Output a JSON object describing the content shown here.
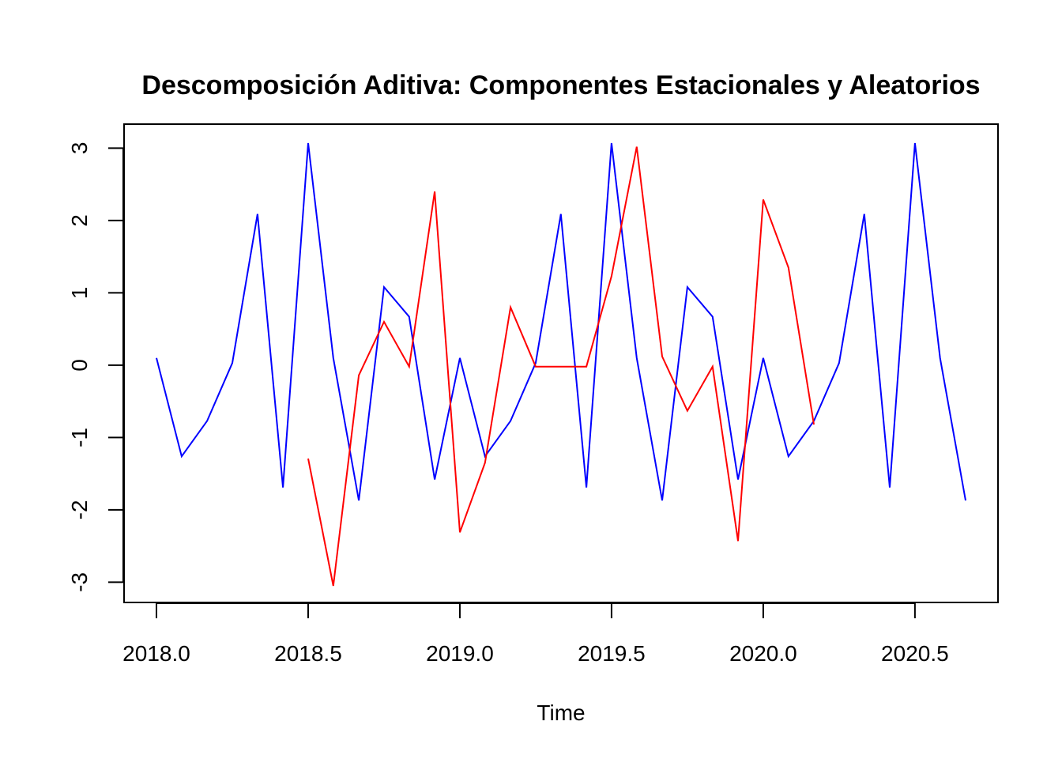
{
  "chart_data": {
    "type": "line",
    "title": "Descomposición Aditiva: Componentes Estacionales y Aleatorios",
    "xlabel": "Time",
    "ylabel": "",
    "xlim": [
      2018.0,
      2020.667
    ],
    "ylim": [
      -3.05,
      3.07
    ],
    "xticks": [
      2018.0,
      2018.5,
      2019.0,
      2019.5,
      2020.0,
      2020.5
    ],
    "xtick_labels": [
      "2018.0",
      "2018.5",
      "2019.0",
      "2019.5",
      "2020.0",
      "2020.5"
    ],
    "yticks": [
      -3,
      -2,
      -1,
      0,
      1,
      2,
      3
    ],
    "ytick_labels": [
      "-3",
      "-2",
      "-1",
      "0",
      "1",
      "2",
      "3"
    ],
    "grid": false,
    "legend": "none",
    "series": [
      {
        "color": "#0000ff",
        "x": [
          2018.0,
          2018.083,
          2018.167,
          2018.25,
          2018.333,
          2018.417,
          2018.5,
          2018.583,
          2018.667,
          2018.75,
          2018.833,
          2018.917,
          2019.0,
          2019.083,
          2019.167,
          2019.25,
          2019.333,
          2019.417,
          2019.5,
          2019.583,
          2019.667,
          2019.75,
          2019.833,
          2019.917,
          2020.0,
          2020.083,
          2020.167,
          2020.25,
          2020.333,
          2020.417,
          2020.5,
          2020.583,
          2020.667
        ],
        "values": [
          0.1,
          -1.26,
          -0.77,
          0.03,
          2.09,
          -1.69,
          3.07,
          0.1,
          -1.87,
          1.08,
          0.67,
          -1.58,
          0.1,
          -1.26,
          -0.77,
          0.03,
          2.09,
          -1.69,
          3.07,
          0.1,
          -1.87,
          1.08,
          0.67,
          -1.58,
          0.1,
          -1.26,
          -0.77,
          0.03,
          2.09,
          -1.69,
          3.07,
          0.1,
          -1.87
        ]
      },
      {
        "color": "#ff0000",
        "x": [
          2018.5,
          2018.583,
          2018.667,
          2018.75,
          2018.833,
          2018.917,
          2019.0,
          2019.083,
          2019.167,
          2019.25,
          2019.333,
          2019.417,
          2019.5,
          2019.583,
          2019.667,
          2019.75,
          2019.833,
          2019.917,
          2020.0,
          2020.083,
          2020.167
        ],
        "values": [
          -1.29,
          -3.05,
          -0.14,
          0.6,
          -0.02,
          2.4,
          -2.31,
          -1.35,
          0.8,
          -0.02,
          -0.02,
          -0.02,
          1.23,
          3.02,
          0.12,
          -0.63,
          -0.02,
          -2.43,
          2.29,
          1.35,
          -0.82
        ]
      }
    ]
  }
}
